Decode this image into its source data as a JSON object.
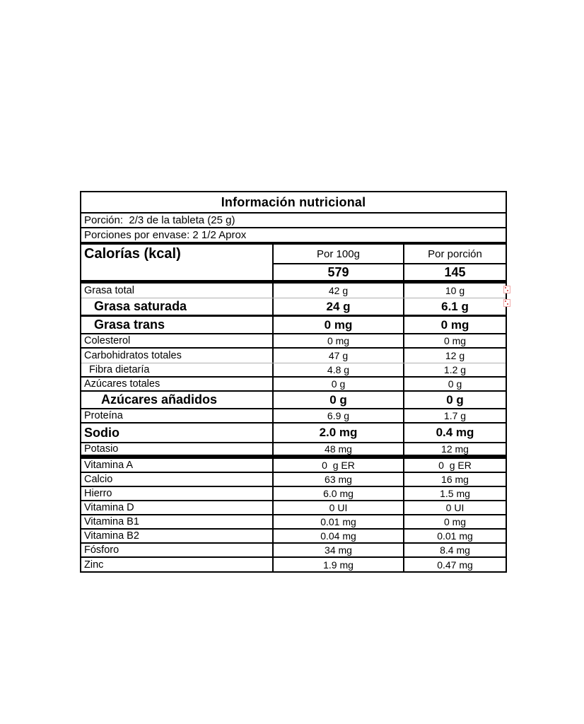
{
  "label": {
    "title": "Información nutricional",
    "serving_line1": "Porción:  2/3 de la tableta (25 g)",
    "serving_line2": "Porciones por envase: 2 1/2 Aprox",
    "calories": {
      "name": "Calorías (kcal)",
      "col_per_100g": "Por 100g",
      "col_per_serving": "Por porción",
      "per_100g": "579",
      "per_serving": "145"
    },
    "rows": [
      {
        "name": "Grasa total",
        "per_100g": "42 g",
        "per_serving": "10 g"
      },
      {
        "name": "Grasa saturada",
        "per_100g": "24 g",
        "per_serving": "6.1 g"
      },
      {
        "name": "Grasa trans",
        "per_100g": "0 mg",
        "per_serving": "0 mg"
      },
      {
        "name": "Colesterol",
        "per_100g": "0 mg",
        "per_serving": "0 mg"
      },
      {
        "name": "Carbohidratos totales",
        "per_100g": "47 g",
        "per_serving": "12 g"
      },
      {
        "name": "Fibra dietaría",
        "per_100g": "4.8 g",
        "per_serving": "1.2 g"
      },
      {
        "name": "Azúcares totales",
        "per_100g": "0 g",
        "per_serving": "0 g"
      },
      {
        "name": "Azúcares añadidos",
        "per_100g": "0 g",
        "per_serving": "0 g"
      },
      {
        "name": "Proteína",
        "per_100g": "6.9 g",
        "per_serving": "1.7 g"
      },
      {
        "name": "Sodio",
        "per_100g": "2.0 mg",
        "per_serving": "0.4 mg"
      },
      {
        "name": "Potasio",
        "per_100g": "48 mg",
        "per_serving": "12 mg"
      },
      {
        "name": "Vitamina A",
        "per_100g": "0  g ER",
        "per_serving": "0  g ER"
      },
      {
        "name": "Calcio",
        "per_100g": "63 mg",
        "per_serving": "16 mg"
      },
      {
        "name": "Hierro",
        "per_100g": "6.0 mg",
        "per_serving": "1.5 mg"
      },
      {
        "name": "Vitamina D",
        "per_100g": "0 UI",
        "per_serving": "0 UI"
      },
      {
        "name": "Vitamina B1",
        "per_100g": "0.01 mg",
        "per_serving": "0 mg"
      },
      {
        "name": "Vitamina B2",
        "per_100g": "0.04 mg",
        "per_serving": "0.01 mg"
      },
      {
        "name": "Fósforo",
        "per_100g": "34 mg",
        "per_serving": "8.4 mg"
      },
      {
        "name": "Zinc",
        "per_100g": "1.9 mg",
        "per_serving": "0.47 mg"
      }
    ],
    "colors": {
      "border": "#000000",
      "light_divider": "#b0b0b0",
      "marker_pink": "#f0a8a8"
    }
  }
}
